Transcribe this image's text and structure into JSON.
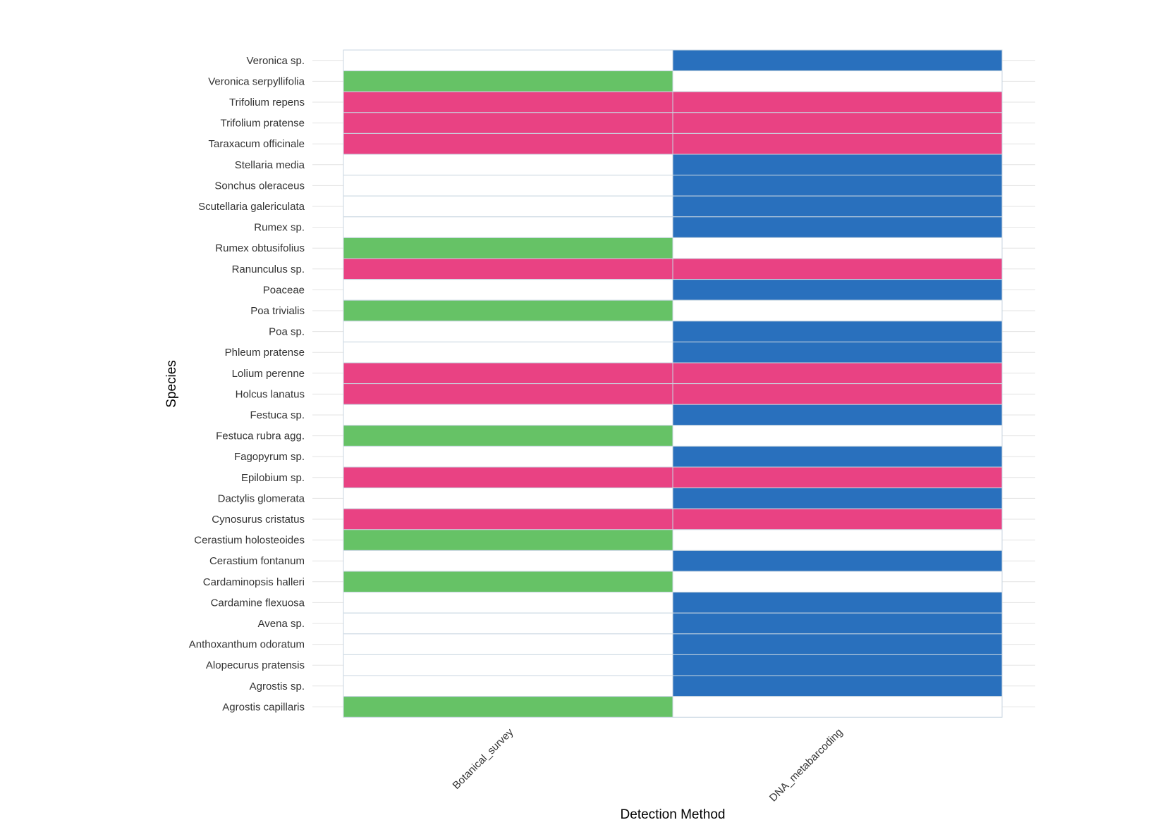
{
  "chart_data": {
    "type": "heatmap",
    "xlabel": "Detection Method",
    "ylabel": "Species",
    "x_categories": [
      "Botanical_survey",
      "DNA_metabarcoding"
    ],
    "y_categories": [
      "Veronica sp.",
      "Veronica serpyllifolia",
      "Trifolium repens",
      "Trifolium pratense",
      "Taraxacum officinale",
      "Stellaria media",
      "Sonchus oleraceus",
      "Scutellaria galericulata",
      "Rumex sp.",
      "Rumex obtusifolius",
      "Ranunculus sp.",
      "Poaceae",
      "Poa trivialis",
      "Poa sp.",
      "Phleum pratense",
      "Lolium perenne",
      "Holcus lanatus",
      "Festuca sp.",
      "Festuca rubra agg.",
      "Fagopyrum sp.",
      "Epilobium sp.",
      "Dactylis glomerata",
      "Cynosurus cristatus",
      "Cerastium holosteoides",
      "Cerastium fontanum",
      "Cardaminopsis halleri",
      "Cardamine flexuosa",
      "Avena sp.",
      "Anthoxanthum odoratum",
      "Alopecurus pratensis",
      "Agrostis sp.",
      "Agrostis capillaris"
    ],
    "detection": [
      "dna",
      "survey",
      "both",
      "both",
      "both",
      "dna",
      "dna",
      "dna",
      "dna",
      "survey",
      "both",
      "dna",
      "survey",
      "dna",
      "dna",
      "both",
      "both",
      "dna",
      "survey",
      "dna",
      "both",
      "dna",
      "both",
      "survey",
      "dna",
      "survey",
      "dna",
      "dna",
      "dna",
      "dna",
      "dna",
      "survey"
    ],
    "colors": {
      "survey": "#66c266",
      "dna": "#2970bd",
      "both": "#e94283",
      "absent": "#ffffff",
      "grid": "#e3e3e3",
      "cell_border": "#c8d6e0"
    }
  }
}
